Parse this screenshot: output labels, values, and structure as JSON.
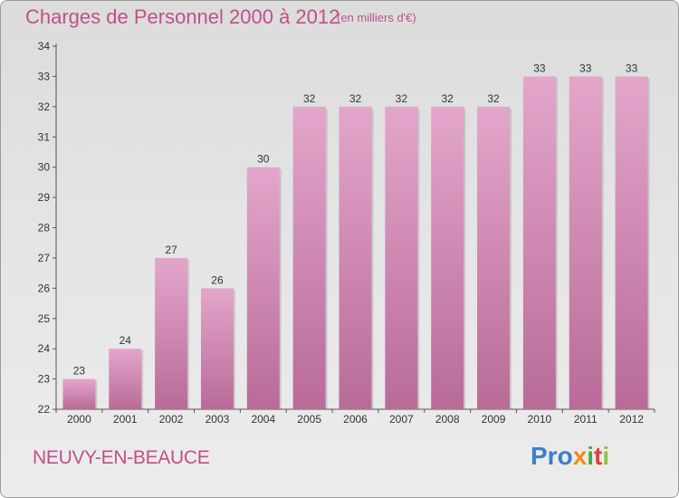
{
  "header": {
    "title": "Charges de Personnel 2000 à 2012",
    "subtitle": "(en milliers d'€)"
  },
  "footer": {
    "commune": "NEUVY-EN-BEAUCE",
    "logo_text": "Proxiti",
    "logo_parts": [
      "Pro",
      "x",
      "i",
      "t",
      "i"
    ]
  },
  "colors": {
    "accent": "#c0508a",
    "bar_top": "#e3a6cb",
    "bar_bottom": "#b96b98"
  },
  "chart_data": {
    "type": "bar",
    "categories": [
      "2000",
      "2001",
      "2002",
      "2003",
      "2004",
      "2005",
      "2006",
      "2007",
      "2008",
      "2009",
      "2010",
      "2011",
      "2012"
    ],
    "values": [
      23,
      24,
      27,
      26,
      30,
      32,
      32,
      32,
      32,
      32,
      33,
      33,
      33
    ],
    "ylim": [
      22,
      34
    ],
    "yticks": [
      22,
      23,
      24,
      25,
      26,
      27,
      28,
      29,
      30,
      31,
      32,
      33,
      34
    ],
    "grid": false
  }
}
